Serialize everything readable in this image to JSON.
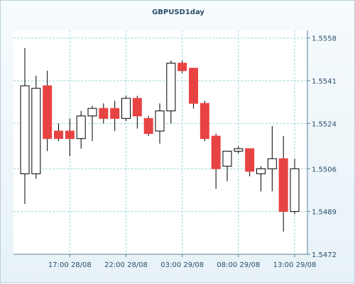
{
  "chart_data": {
    "type": "candlestick",
    "title": "GBPUSD1day",
    "y_ticks": [
      1.5472,
      1.5489,
      1.5506,
      1.5524,
      1.5541,
      1.5558
    ],
    "ylim": [
      1.5472,
      1.5561
    ],
    "x_ticks": [
      {
        "label": "17:00 28/08",
        "index": 4
      },
      {
        "label": "22:00 28/08",
        "index": 9
      },
      {
        "label": "03:00 29/08",
        "index": 14
      },
      {
        "label": "08:00 29/08",
        "index": 19
      },
      {
        "label": "13:00 29/08",
        "index": 24
      }
    ],
    "grid": true,
    "colors": {
      "up": "#ffffff",
      "down": "#e84343",
      "outline": "#000000",
      "grid": "#9fd6dc",
      "axis": "#5a7f9a"
    },
    "candles": [
      {
        "open": 1.5504,
        "high": 1.5554,
        "low": 1.5492,
        "close": 1.5539
      },
      {
        "open": 1.5504,
        "high": 1.5543,
        "low": 1.5502,
        "close": 1.5538
      },
      {
        "open": 1.5539,
        "high": 1.5545,
        "low": 1.5513,
        "close": 1.5518
      },
      {
        "open": 1.5521,
        "high": 1.5524,
        "low": 1.5517,
        "close": 1.5518
      },
      {
        "open": 1.5521,
        "high": 1.5526,
        "low": 1.5511,
        "close": 1.5518
      },
      {
        "open": 1.5518,
        "high": 1.5529,
        "low": 1.5514,
        "close": 1.5527
      },
      {
        "open": 1.5527,
        "high": 1.5531,
        "low": 1.5517,
        "close": 1.553
      },
      {
        "open": 1.553,
        "high": 1.5532,
        "low": 1.5524,
        "close": 1.5526
      },
      {
        "open": 1.553,
        "high": 1.5533,
        "low": 1.5521,
        "close": 1.5526
      },
      {
        "open": 1.5526,
        "high": 1.5535,
        "low": 1.5525,
        "close": 1.5534
      },
      {
        "open": 1.5534,
        "high": 1.5535,
        "low": 1.5522,
        "close": 1.5527
      },
      {
        "open": 1.5526,
        "high": 1.5527,
        "low": 1.5519,
        "close": 1.552
      },
      {
        "open": 1.5521,
        "high": 1.5532,
        "low": 1.5516,
        "close": 1.5529
      },
      {
        "open": 1.5529,
        "high": 1.5549,
        "low": 1.5524,
        "close": 1.5548
      },
      {
        "open": 1.5548,
        "high": 1.5549,
        "low": 1.5544,
        "close": 1.5545
      },
      {
        "open": 1.5546,
        "high": 1.5546,
        "low": 1.553,
        "close": 1.5532
      },
      {
        "open": 1.5532,
        "high": 1.5533,
        "low": 1.5517,
        "close": 1.5518
      },
      {
        "open": 1.5519,
        "high": 1.552,
        "low": 1.5498,
        "close": 1.5506
      },
      {
        "open": 1.5507,
        "high": 1.5513,
        "low": 1.5501,
        "close": 1.5513
      },
      {
        "open": 1.5513,
        "high": 1.5515,
        "low": 1.5512,
        "close": 1.5514
      },
      {
        "open": 1.5514,
        "high": 1.5514,
        "low": 1.5503,
        "close": 1.5505
      },
      {
        "open": 1.5504,
        "high": 1.5507,
        "low": 1.5497,
        "close": 1.5506
      },
      {
        "open": 1.5506,
        "high": 1.5523,
        "low": 1.5497,
        "close": 1.551
      },
      {
        "open": 1.551,
        "high": 1.5519,
        "low": 1.5481,
        "close": 1.5489
      },
      {
        "open": 1.5489,
        "high": 1.551,
        "low": 1.5488,
        "close": 1.5506
      }
    ]
  }
}
